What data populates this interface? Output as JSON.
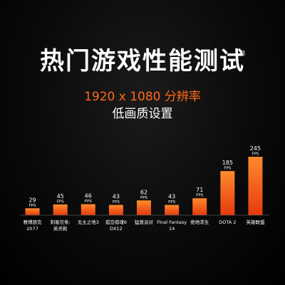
{
  "header": {
    "title": "热门游戏性能测试",
    "footnote": "3",
    "resolution": "1920 x 1080 分辨率",
    "quality": "低画质设置"
  },
  "colors": {
    "bar_top": "#ff8a2e",
    "bar_bottom": "#e63a0c",
    "accent": "#ff6a1a",
    "axis": "#555555"
  },
  "chart_data": {
    "type": "bar",
    "title": "热门游戏性能测试",
    "subtitle": "1920 x 1080 分辨率",
    "categories": [
      [
        "赛博朋克",
        "2077"
      ],
      [
        "刺客信条:",
        "英灵殿"
      ],
      [
        "无主之地3"
      ],
      [
        "孤岛惊魂6",
        "DX12"
      ],
      [
        "猛兽派对"
      ],
      [
        "Final Fantasy",
        "14"
      ],
      [
        "绝地求生"
      ],
      [
        "DOTA 2"
      ],
      [
        "英雄联盟"
      ]
    ],
    "values": [
      29,
      45,
      46,
      43,
      62,
      43,
      71,
      185,
      245
    ],
    "unit": "FPS",
    "ylim": [
      0,
      245
    ],
    "grid": false,
    "legend": "none"
  }
}
